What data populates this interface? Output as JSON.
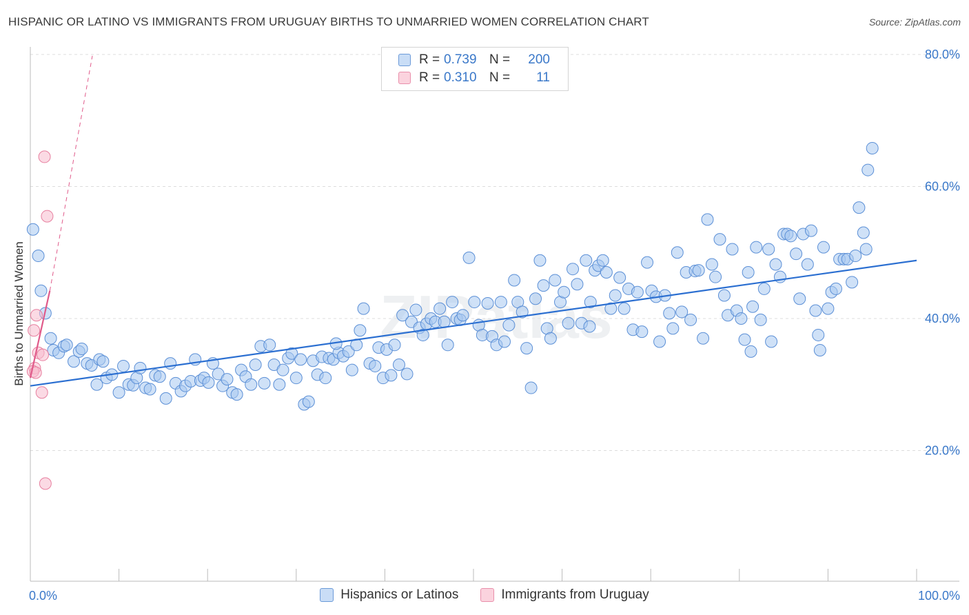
{
  "title": "HISPANIC OR LATINO VS IMMIGRANTS FROM URUGUAY BIRTHS TO UNMARRIED WOMEN CORRELATION CHART",
  "source": "Source: ZipAtlas.com",
  "watermark": "ZIPatlas",
  "legend": {
    "rows": [
      {
        "r_label": "R =",
        "r_value": "0.739",
        "n_label": "N =",
        "n_value": "200",
        "color": "#a8c8f0",
        "border": "#5b8fd6"
      },
      {
        "r_label": "R =",
        "r_value": "0.310",
        "n_label": "N =",
        "n_value": "11",
        "color": "#f8bccd",
        "border": "#e77f9f"
      }
    ]
  },
  "bottom_legend": [
    {
      "label": "Hispanics or Latinos",
      "color": "#a8c8f0",
      "border": "#5b8fd6"
    },
    {
      "label": "Immigrants from Uruguay",
      "color": "#f8bccd",
      "border": "#e77f9f"
    }
  ],
  "chart_data": {
    "type": "scatter",
    "title": "HISPANIC OR LATINO VS IMMIGRANTS FROM URUGUAY BIRTHS TO UNMARRIED WOMEN CORRELATION CHART",
    "xlabel": "",
    "ylabel": "Births to Unmarried Women",
    "xlim": [
      0,
      100
    ],
    "ylim": [
      0,
      82
    ],
    "x_tick_labels": [
      {
        "value": 0,
        "label": "0.0%"
      },
      {
        "value": 100,
        "label": "100.0%"
      }
    ],
    "y_tick_labels": [
      {
        "value": 20,
        "label": "20.0%"
      },
      {
        "value": 40,
        "label": "40.0%"
      },
      {
        "value": 60,
        "label": "60.0%"
      },
      {
        "value": 80,
        "label": "80.0%"
      }
    ],
    "grid": "horizontal dashed",
    "legend_position": "top-center",
    "series": [
      {
        "name": "Hispanics or Latinos",
        "color": "#a8c8f0",
        "edge": "#5b8fd6",
        "trend": {
          "x": [
            0,
            100
          ],
          "y": [
            29.8,
            48.8
          ],
          "color": "#2b6fd1"
        },
        "points": [
          [
            0.3,
            53.5
          ],
          [
            0.9,
            49.5
          ],
          [
            1.2,
            44.2
          ],
          [
            1.7,
            40.8
          ],
          [
            2.3,
            37.0
          ],
          [
            2.6,
            35.2
          ],
          [
            3.2,
            34.8
          ],
          [
            3.8,
            35.8
          ],
          [
            4.1,
            36.0
          ],
          [
            4.9,
            33.5
          ],
          [
            5.5,
            35.0
          ],
          [
            5.8,
            35.4
          ],
          [
            6.4,
            33.2
          ],
          [
            6.9,
            32.9
          ],
          [
            7.5,
            30.0
          ],
          [
            7.8,
            33.8
          ],
          [
            8.2,
            33.5
          ],
          [
            8.6,
            31.0
          ],
          [
            9.2,
            31.5
          ],
          [
            10.0,
            28.8
          ],
          [
            10.5,
            32.8
          ],
          [
            11.1,
            30.0
          ],
          [
            11.6,
            29.9
          ],
          [
            12.0,
            31.0
          ],
          [
            12.4,
            32.5
          ],
          [
            13.0,
            29.5
          ],
          [
            13.5,
            29.3
          ],
          [
            14.1,
            31.4
          ],
          [
            14.6,
            31.2
          ],
          [
            15.3,
            27.9
          ],
          [
            15.8,
            33.2
          ],
          [
            16.4,
            30.2
          ],
          [
            17.0,
            29.0
          ],
          [
            17.5,
            29.8
          ],
          [
            18.1,
            30.5
          ],
          [
            18.6,
            33.8
          ],
          [
            19.2,
            30.6
          ],
          [
            19.6,
            31.0
          ],
          [
            20.1,
            30.3
          ],
          [
            20.6,
            33.2
          ],
          [
            21.2,
            31.6
          ],
          [
            21.7,
            29.8
          ],
          [
            22.2,
            30.8
          ],
          [
            22.8,
            28.8
          ],
          [
            23.3,
            28.5
          ],
          [
            23.8,
            32.2
          ],
          [
            24.3,
            31.2
          ],
          [
            24.9,
            30.0
          ],
          [
            25.4,
            33.0
          ],
          [
            26.0,
            35.8
          ],
          [
            26.4,
            30.2
          ],
          [
            27.0,
            36.0
          ],
          [
            27.5,
            33.0
          ],
          [
            28.1,
            30.0
          ],
          [
            28.5,
            32.2
          ],
          [
            29.1,
            34.0
          ],
          [
            29.5,
            34.7
          ],
          [
            30.0,
            31.0
          ],
          [
            30.5,
            33.8
          ],
          [
            30.9,
            27.0
          ],
          [
            31.4,
            27.4
          ],
          [
            31.9,
            33.6
          ],
          [
            32.4,
            31.5
          ],
          [
            32.9,
            34.2
          ],
          [
            33.3,
            31.0
          ],
          [
            33.7,
            34.0
          ],
          [
            34.2,
            33.8
          ],
          [
            34.8,
            34.8
          ],
          [
            35.3,
            34.3
          ],
          [
            35.9,
            35.0
          ],
          [
            36.3,
            32.2
          ],
          [
            36.8,
            36.0
          ],
          [
            37.2,
            38.2
          ],
          [
            37.6,
            41.5
          ],
          [
            38.3,
            33.2
          ],
          [
            38.9,
            32.8
          ],
          [
            39.3,
            35.6
          ],
          [
            39.8,
            31.0
          ],
          [
            40.2,
            35.3
          ],
          [
            40.7,
            31.4
          ],
          [
            41.1,
            36.0
          ],
          [
            41.6,
            33.0
          ],
          [
            42.0,
            40.5
          ],
          [
            42.5,
            31.6
          ],
          [
            43.0,
            39.5
          ],
          [
            43.5,
            41.3
          ],
          [
            43.9,
            38.6
          ],
          [
            44.3,
            37.5
          ],
          [
            44.7,
            39.2
          ],
          [
            45.2,
            40.0
          ],
          [
            45.7,
            39.5
          ],
          [
            46.2,
            41.5
          ],
          [
            46.7,
            39.5
          ],
          [
            47.1,
            36.0
          ],
          [
            47.6,
            42.5
          ],
          [
            48.1,
            40.0
          ],
          [
            48.5,
            39.8
          ],
          [
            48.8,
            40.5
          ],
          [
            49.5,
            49.2
          ],
          [
            50.1,
            42.5
          ],
          [
            50.6,
            39.0
          ],
          [
            51.0,
            37.5
          ],
          [
            51.6,
            42.3
          ],
          [
            52.1,
            37.3
          ],
          [
            52.6,
            36.0
          ],
          [
            53.1,
            42.5
          ],
          [
            53.5,
            36.5
          ],
          [
            54.0,
            39.0
          ],
          [
            54.6,
            45.8
          ],
          [
            55.0,
            42.5
          ],
          [
            55.5,
            41.0
          ],
          [
            56.0,
            35.5
          ],
          [
            56.5,
            29.5
          ],
          [
            57.0,
            43.0
          ],
          [
            57.5,
            48.8
          ],
          [
            57.9,
            45.0
          ],
          [
            58.3,
            38.5
          ],
          [
            58.7,
            37.0
          ],
          [
            59.2,
            45.8
          ],
          [
            59.8,
            42.5
          ],
          [
            60.2,
            44.0
          ],
          [
            60.7,
            39.3
          ],
          [
            61.2,
            47.5
          ],
          [
            61.7,
            45.2
          ],
          [
            62.2,
            39.3
          ],
          [
            62.7,
            48.8
          ],
          [
            63.2,
            42.5
          ],
          [
            63.7,
            47.3
          ],
          [
            64.1,
            48.0
          ],
          [
            64.6,
            48.8
          ],
          [
            65.0,
            47.0
          ],
          [
            65.5,
            41.5
          ],
          [
            66.0,
            43.5
          ],
          [
            66.5,
            46.2
          ],
          [
            67.0,
            41.5
          ],
          [
            67.5,
            44.5
          ],
          [
            68.0,
            38.3
          ],
          [
            68.5,
            44.0
          ],
          [
            69.0,
            38.0
          ],
          [
            69.6,
            48.5
          ],
          [
            70.1,
            44.2
          ],
          [
            70.6,
            43.3
          ],
          [
            71.0,
            36.5
          ],
          [
            71.6,
            43.5
          ],
          [
            72.1,
            40.8
          ],
          [
            72.5,
            38.5
          ],
          [
            73.0,
            50.0
          ],
          [
            73.5,
            41.0
          ],
          [
            74.0,
            47.0
          ],
          [
            74.5,
            39.8
          ],
          [
            75.0,
            47.2
          ],
          [
            75.4,
            47.3
          ],
          [
            75.9,
            37.0
          ],
          [
            76.4,
            55.0
          ],
          [
            76.9,
            48.2
          ],
          [
            77.3,
            46.3
          ],
          [
            77.8,
            52.0
          ],
          [
            78.3,
            43.5
          ],
          [
            78.7,
            40.5
          ],
          [
            79.2,
            50.5
          ],
          [
            79.7,
            41.2
          ],
          [
            80.2,
            40.0
          ],
          [
            80.6,
            36.8
          ],
          [
            81.0,
            47.0
          ],
          [
            81.5,
            41.8
          ],
          [
            81.9,
            50.8
          ],
          [
            82.4,
            39.8
          ],
          [
            82.8,
            44.5
          ],
          [
            83.3,
            50.5
          ],
          [
            83.6,
            36.5
          ],
          [
            84.1,
            48.2
          ],
          [
            84.6,
            46.3
          ],
          [
            85.0,
            52.8
          ],
          [
            85.4,
            52.8
          ],
          [
            85.8,
            52.5
          ],
          [
            86.4,
            49.8
          ],
          [
            86.8,
            43.0
          ],
          [
            87.2,
            52.8
          ],
          [
            87.7,
            48.2
          ],
          [
            88.1,
            53.3
          ],
          [
            88.6,
            41.2
          ],
          [
            89.1,
            35.2
          ],
          [
            89.5,
            50.8
          ],
          [
            90.0,
            41.5
          ],
          [
            90.4,
            44.0
          ],
          [
            90.9,
            44.5
          ],
          [
            91.3,
            49.0
          ],
          [
            91.8,
            49.0
          ],
          [
            92.2,
            49.0
          ],
          [
            92.7,
            45.5
          ],
          [
            93.1,
            49.5
          ],
          [
            93.5,
            56.8
          ],
          [
            94.0,
            53.0
          ],
          [
            94.5,
            62.5
          ],
          [
            95.0,
            65.8
          ],
          [
            94.3,
            50.5
          ],
          [
            88.9,
            37.5
          ],
          [
            81.3,
            35.0
          ],
          [
            63.1,
            38.8
          ],
          [
            34.5,
            36.2
          ]
        ]
      },
      {
        "name": "Immigrants from Uruguay",
        "color": "#f8bccd",
        "edge": "#e77f9f",
        "trend": {
          "x": [
            0,
            2.2
          ],
          "y": [
            31.0,
            44.2
          ],
          "color": "#e05a8a"
        },
        "trend_extension": {
          "x": [
            2.2,
            7.0
          ],
          "y": [
            44.2,
            79.8
          ]
        },
        "points": [
          [
            1.6,
            64.5
          ],
          [
            1.9,
            55.5
          ],
          [
            0.7,
            40.5
          ],
          [
            0.4,
            38.2
          ],
          [
            0.9,
            34.8
          ],
          [
            1.4,
            34.5
          ],
          [
            0.5,
            32.5
          ],
          [
            0.3,
            32.0
          ],
          [
            0.6,
            31.8
          ],
          [
            1.3,
            28.8
          ],
          [
            1.7,
            15.0
          ]
        ]
      }
    ]
  }
}
